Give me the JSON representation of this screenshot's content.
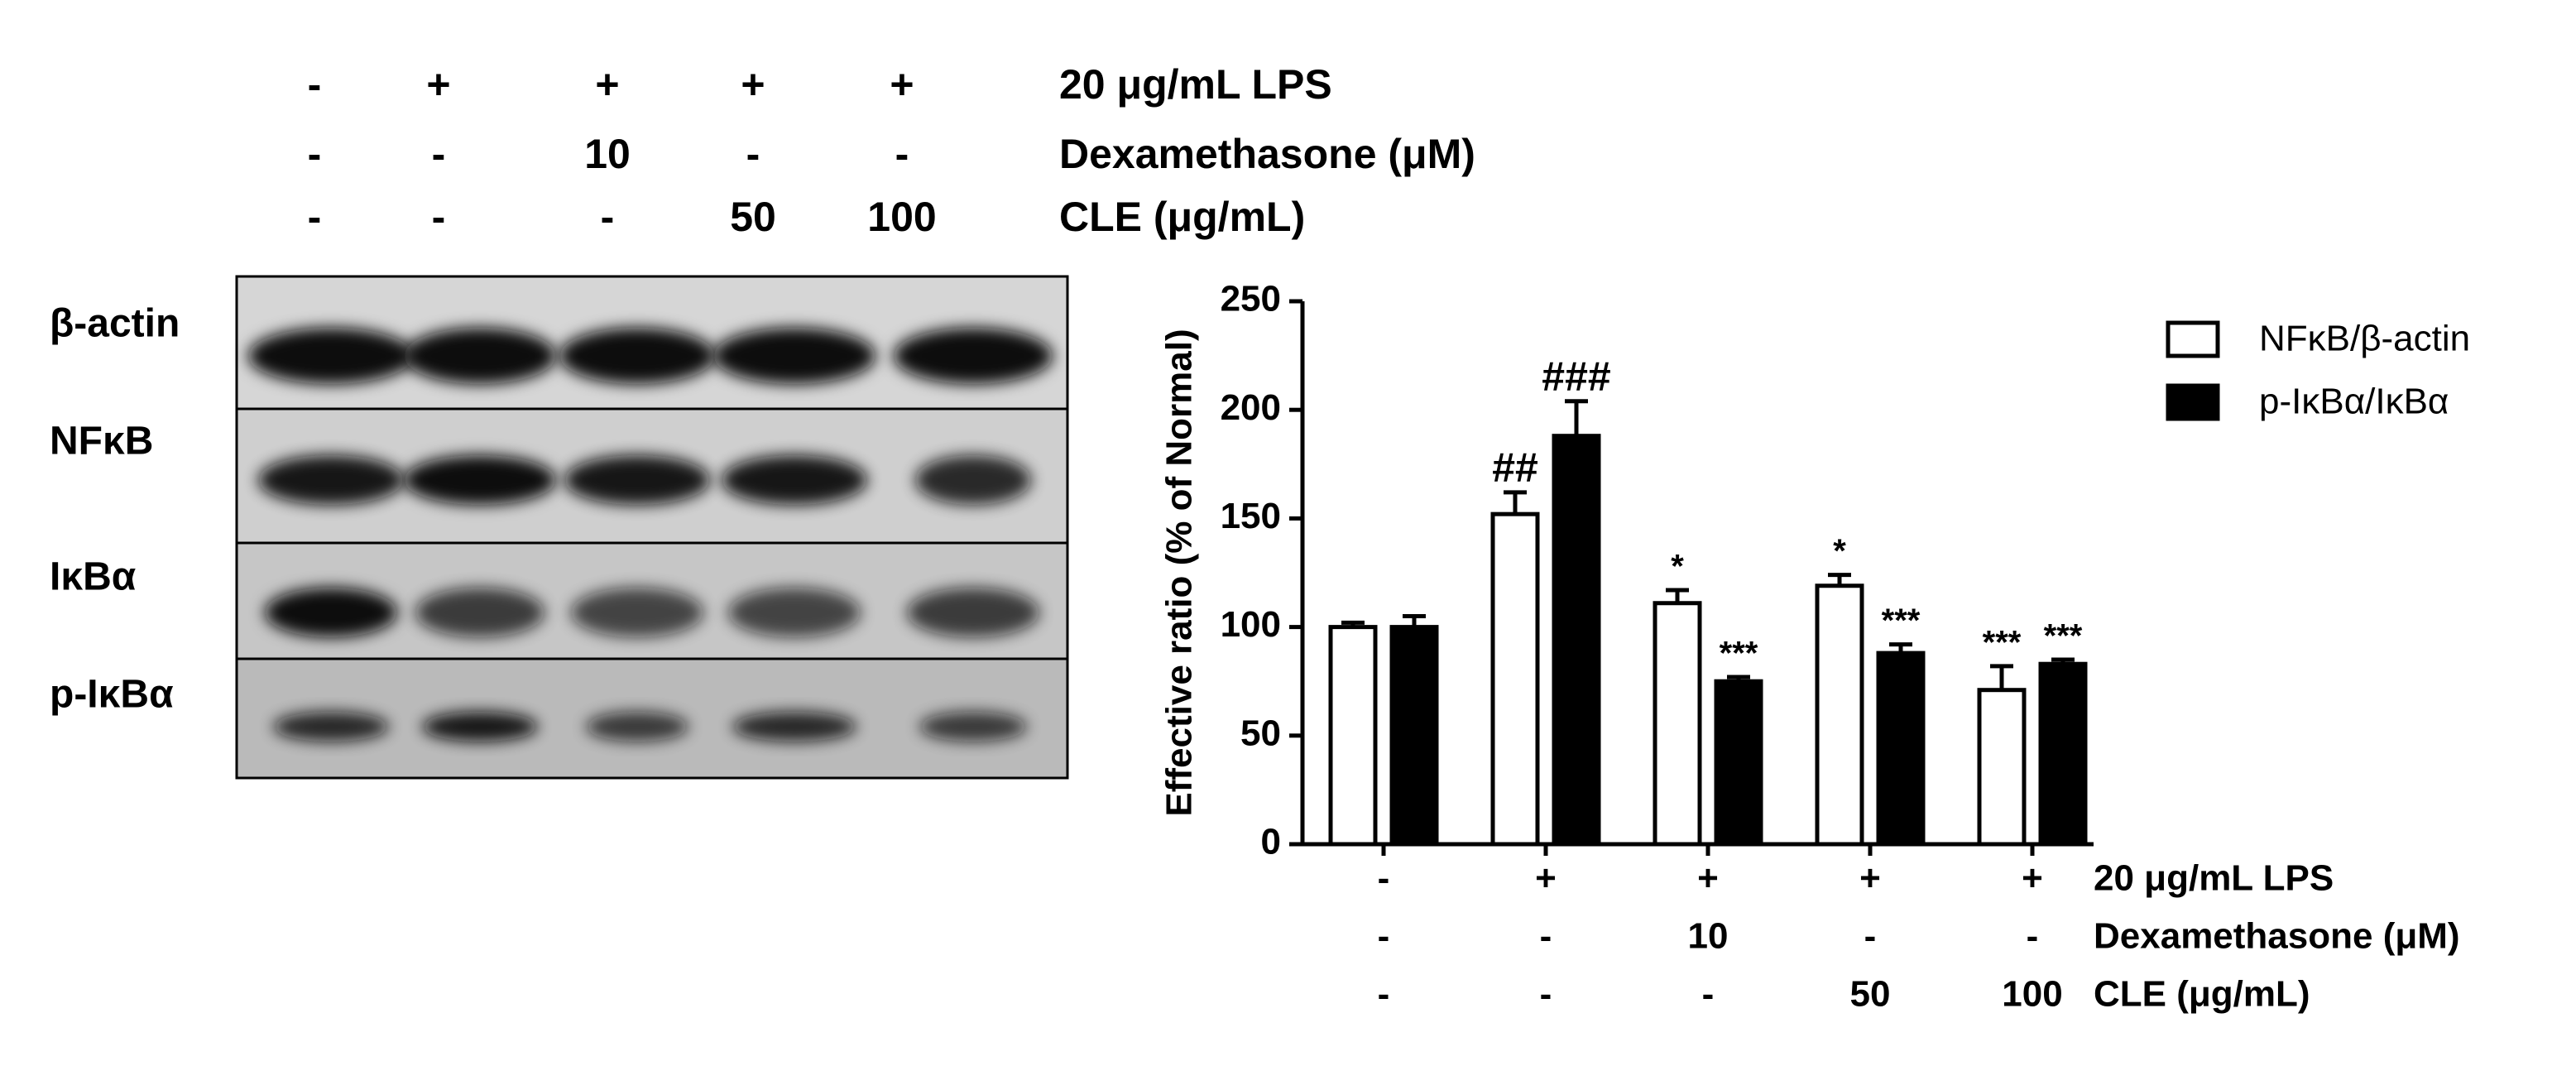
{
  "blot": {
    "treatment_rows": [
      {
        "label": "20 μg/mL LPS",
        "values": [
          "-",
          "+",
          "+",
          "+",
          "+"
        ]
      },
      {
        "label": "Dexamethasone (μM)",
        "values": [
          "-",
          "-",
          "10",
          "-",
          "-"
        ]
      },
      {
        "label": "CLE (μg/mL)",
        "values": [
          "-",
          "-",
          "-",
          "50",
          "100"
        ]
      }
    ],
    "bands": [
      "β-actin",
      "NFκB",
      "IκBα",
      "p-IκBα"
    ]
  },
  "chart_data": {
    "type": "bar",
    "y_label": "Effective ratio (% of Normal)",
    "categories": [
      null,
      null,
      null,
      null,
      null
    ],
    "treatment_rows": [
      {
        "label": "20 μg/mL  LPS",
        "values": [
          "-",
          "+",
          "+",
          "+",
          "+"
        ]
      },
      {
        "label": "Dexamethasone (μM)",
        "values": [
          "-",
          "-",
          "10",
          "-",
          "-"
        ]
      },
      {
        "label": "CLE (μg/mL)",
        "values": [
          "-",
          "-",
          "-",
          "50",
          "100"
        ]
      }
    ],
    "series": [
      {
        "name": "NFκB/β-actin",
        "color": "#ffffff",
        "values": [
          100,
          152,
          111,
          119,
          71
        ],
        "errors": [
          2,
          10,
          6,
          5,
          11
        ],
        "annotations": [
          null,
          "##",
          "*",
          "*",
          "***"
        ]
      },
      {
        "name": "p-IκBα/IκBα",
        "color": "#000000",
        "values": [
          100,
          188,
          75,
          88,
          83
        ],
        "errors": [
          5,
          16,
          2,
          4,
          2
        ],
        "annotations": [
          null,
          "###",
          "***",
          "***",
          "***"
        ]
      }
    ],
    "ylim": [
      0,
      250
    ],
    "yticks": [
      0,
      50,
      100,
      150,
      200,
      250
    ],
    "legend": "upper right"
  }
}
